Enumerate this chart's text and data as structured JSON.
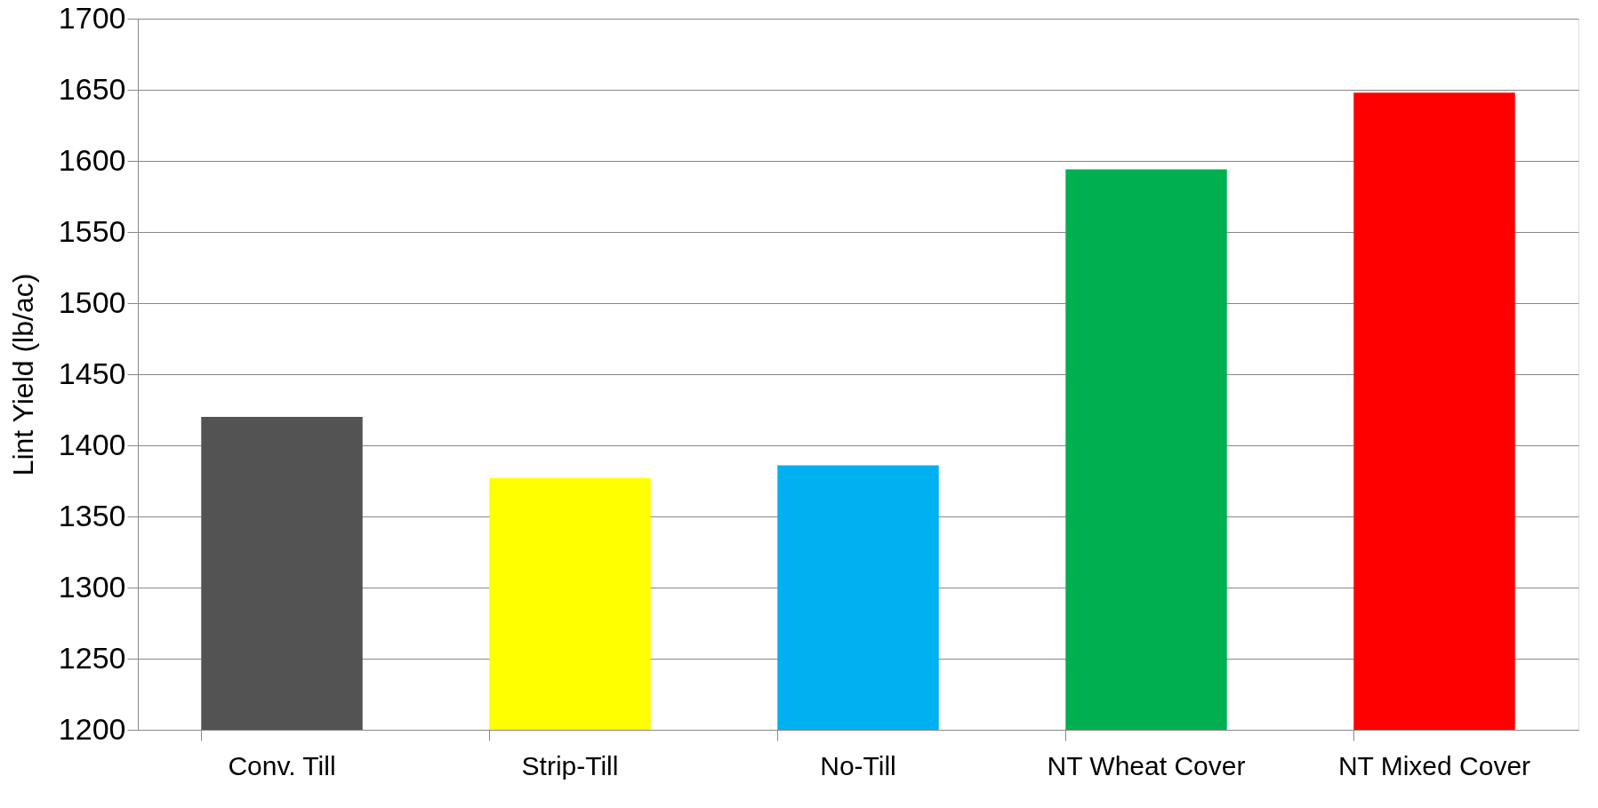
{
  "chart_data": {
    "type": "bar",
    "ylabel": "Lint Yield (lb/ac)",
    "categories": [
      "Conv. Till",
      "Strip-Till",
      "No-Till",
      "NT Wheat Cover",
      "NT Mixed Cover"
    ],
    "values": [
      1420,
      1377,
      1386,
      1594,
      1648
    ],
    "colors": [
      "#535353",
      "#ffff00",
      "#00b0f0",
      "#00b050",
      "#ff0000"
    ],
    "ylim": [
      1200,
      1700
    ],
    "yticks": [
      1200,
      1250,
      1300,
      1350,
      1400,
      1450,
      1500,
      1550,
      1600,
      1650,
      1700
    ],
    "grid": "y",
    "legend": false
  }
}
